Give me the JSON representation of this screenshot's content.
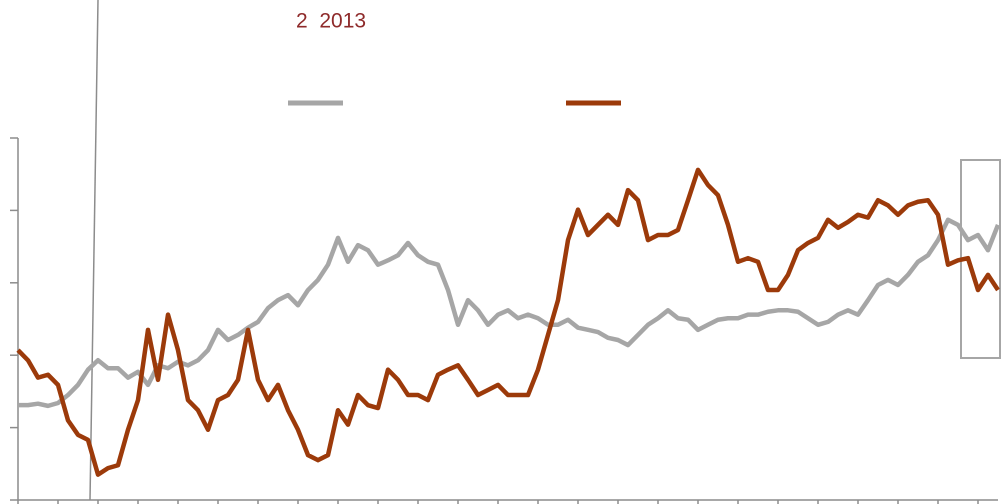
{
  "chart_data": {
    "type": "line",
    "title": "2  2013",
    "xlim": [
      0,
      98
    ],
    "xticks": [
      0,
      4,
      8,
      12,
      16,
      20,
      24,
      28,
      32,
      36,
      40,
      44,
      48,
      52,
      56,
      60,
      64,
      68,
      72,
      76,
      80,
      84,
      88,
      92,
      96
    ],
    "ylim": [
      0,
      5
    ],
    "yticks": [
      0,
      1,
      2,
      3,
      4,
      5
    ],
    "grid": false,
    "series": [
      {
        "color": "#a6a6a6",
        "values": [
          1.31,
          1.31,
          1.33,
          1.3,
          1.34,
          1.45,
          1.59,
          1.8,
          1.93,
          1.82,
          1.82,
          1.69,
          1.77,
          1.59,
          1.86,
          1.82,
          1.91,
          1.86,
          1.93,
          2.07,
          2.35,
          2.21,
          2.28,
          2.38,
          2.46,
          2.65,
          2.76,
          2.83,
          2.69,
          2.9,
          3.04,
          3.25,
          3.62,
          3.29,
          3.52,
          3.45,
          3.25,
          3.31,
          3.38,
          3.55,
          3.38,
          3.29,
          3.25,
          2.9,
          2.42,
          2.76,
          2.62,
          2.42,
          2.56,
          2.62,
          2.51,
          2.56,
          2.51,
          2.42,
          2.42,
          2.49,
          2.38,
          2.35,
          2.32,
          2.24,
          2.21,
          2.14,
          2.28,
          2.42,
          2.51,
          2.62,
          2.51,
          2.49,
          2.35,
          2.42,
          2.49,
          2.51,
          2.51,
          2.56,
          2.56,
          2.6,
          2.62,
          2.62,
          2.6,
          2.51,
          2.42,
          2.46,
          2.56,
          2.62,
          2.56,
          2.76,
          2.97,
          3.04,
          2.97,
          3.11,
          3.29,
          3.38,
          3.59,
          3.87,
          3.8,
          3.59,
          3.66,
          3.45,
          3.8
        ]
      },
      {
        "color": "#9c3a0a",
        "values": [
          2.07,
          1.93,
          1.69,
          1.73,
          1.59,
          1.1,
          0.9,
          0.83,
          0.35,
          0.44,
          0.48,
          0.97,
          1.38,
          2.35,
          1.66,
          2.56,
          2.07,
          1.38,
          1.24,
          0.97,
          1.38,
          1.45,
          1.66,
          2.35,
          1.66,
          1.38,
          1.59,
          1.24,
          0.97,
          0.62,
          0.55,
          0.62,
          1.24,
          1.04,
          1.45,
          1.31,
          1.27,
          1.8,
          1.66,
          1.45,
          1.45,
          1.38,
          1.73,
          1.8,
          1.86,
          1.66,
          1.45,
          1.52,
          1.59,
          1.45,
          1.45,
          1.45,
          1.8,
          2.28,
          2.76,
          3.59,
          4.01,
          3.66,
          3.8,
          3.94,
          3.8,
          4.28,
          4.14,
          3.59,
          3.66,
          3.66,
          3.73,
          4.14,
          4.56,
          4.35,
          4.21,
          3.8,
          3.29,
          3.34,
          3.29,
          2.9,
          2.9,
          3.11,
          3.45,
          3.55,
          3.62,
          3.87,
          3.76,
          3.84,
          3.94,
          3.9,
          4.14,
          4.07,
          3.94,
          4.07,
          4.12,
          4.14,
          3.94,
          3.25,
          3.31,
          3.34,
          2.9,
          3.11,
          2.9
        ]
      }
    ]
  }
}
